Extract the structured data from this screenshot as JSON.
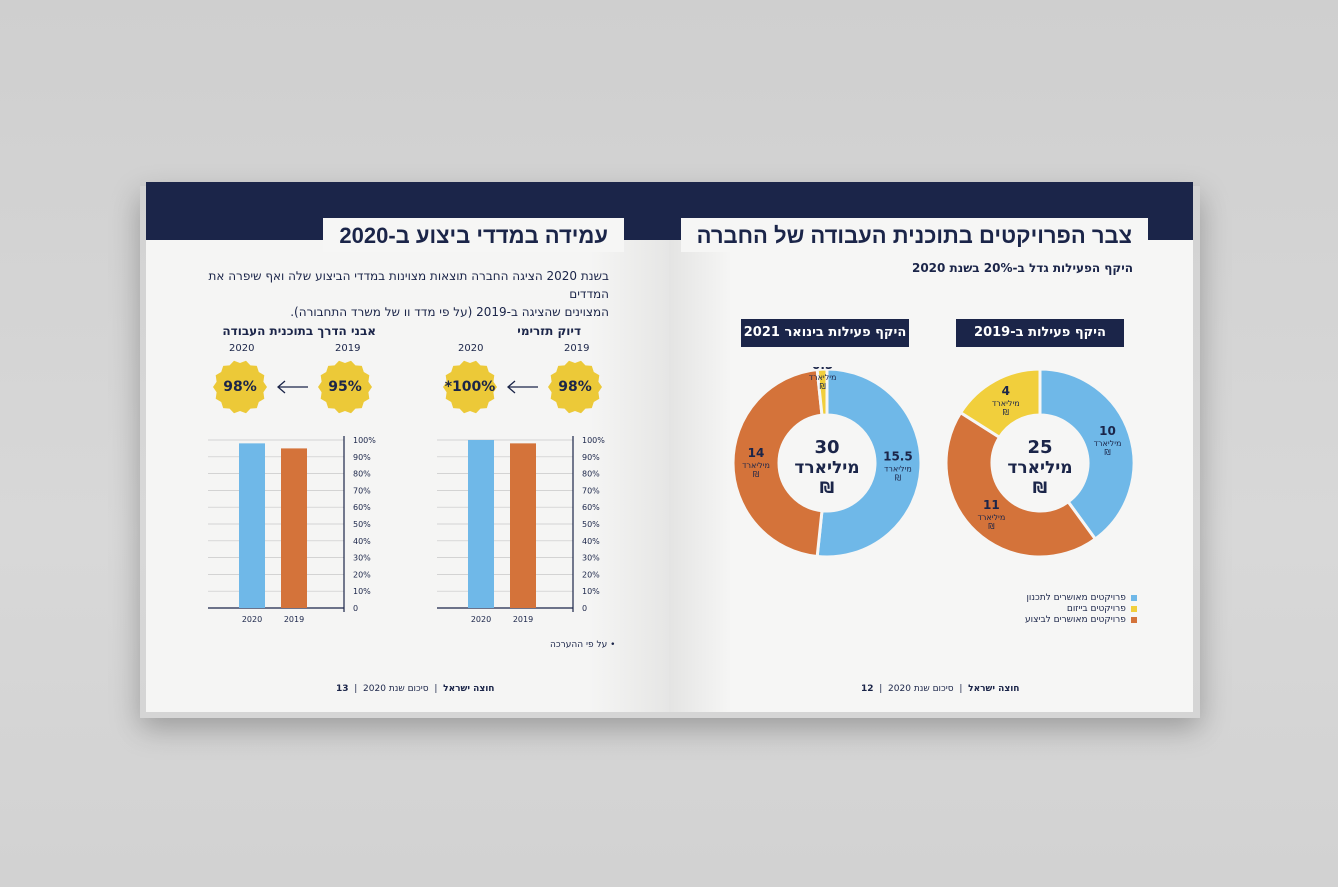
{
  "left_page": {
    "title": "עמידה במדדי ביצוע ב-2020",
    "paragraph_line1": "בשנת 2020 הציגה החברה תוצאות מצוינות במדדי הביצוע שלה ואף שיפרה את המדדים",
    "paragraph_line2": "המצוינים שהציגה ב-2019 (על פי מדד וו של משרד התחבורה).",
    "note": "• על פי ההערכה",
    "footer": {
      "company": "חוצה ישראל",
      "doc": "סיכום שנת 2020",
      "page": "13"
    }
  },
  "right_page": {
    "title": "צבר הפרויקטים בתוכנית העבודה של החברה",
    "subtitle": "היקף הפעילות גדל ב-20% בשנת 2020",
    "footer": {
      "company": "חוצה ישראל",
      "doc": "סיכום שנת 2020",
      "page": "12"
    },
    "legend": [
      {
        "label": "פרויקטים מאושרים לתכנון",
        "color": "#6fb8e8"
      },
      {
        "label": "פרויקטים בייזום",
        "color": "#f1cf3c"
      },
      {
        "label": "פרויקטים מאושרים לביצוע",
        "color": "#d4733a"
      }
    ]
  },
  "colors": {
    "navy": "#1b2549",
    "blue": "#6fb8e8",
    "yellow": "#f1cf3c",
    "orange": "#d4733a",
    "seal": "#ecc938"
  },
  "chart_data": [
    {
      "type": "bar",
      "title": "דיוק תזרימי",
      "categories": [
        "2020",
        "2019"
      ],
      "values": [
        100,
        98
      ],
      "colors": [
        "#6fb8e8",
        "#d4733a"
      ],
      "ylim": [
        0,
        100
      ],
      "yticks": [
        "100%",
        "90%",
        "80%",
        "70%",
        "60%",
        "50%",
        "40%",
        "30%",
        "20%",
        "10%",
        "0"
      ],
      "badges": {
        "year_a": "2019",
        "value_a": "98%",
        "year_b": "2020",
        "value_b": "*100%"
      }
    },
    {
      "type": "bar",
      "title": "אבני הדרך בתוכנית העבודה",
      "categories": [
        "2020",
        "2019"
      ],
      "values": [
        98,
        95
      ],
      "colors": [
        "#6fb8e8",
        "#d4733a"
      ],
      "ylim": [
        0,
        100
      ],
      "yticks": [
        "100%",
        "90%",
        "80%",
        "70%",
        "60%",
        "50%",
        "40%",
        "30%",
        "20%",
        "10%",
        "0"
      ],
      "badges": {
        "year_a": "2019",
        "value_a": "95%",
        "year_b": "2020",
        "value_b": "98%"
      }
    },
    {
      "type": "pie",
      "title": "היקף פעילות ב-2019",
      "center_value": "25",
      "center_unit": "מיליארד",
      "center_symbol": "₪",
      "unit": "מיליארד",
      "currency": "₪",
      "slices": [
        {
          "label": "פרויקטים מאושרים לתכנון",
          "value": 10,
          "color": "#6fb8e8"
        },
        {
          "label": "פרויקטים מאושרים לביצוע",
          "value": 11,
          "color": "#d4733a"
        },
        {
          "label": "פרויקטים בייזום",
          "value": 4,
          "color": "#f1cf3c"
        }
      ]
    },
    {
      "type": "pie",
      "title": "היקף פעילות בינואר 2021",
      "center_value": "30",
      "center_unit": "מיליארד",
      "center_symbol": "₪",
      "unit": "מיליארד",
      "currency": "₪",
      "slices": [
        {
          "label": "פרויקטים מאושרים לתכנון",
          "value": 15.5,
          "color": "#6fb8e8"
        },
        {
          "label": "פרויקטים מאושרים לביצוע",
          "value": 14,
          "color": "#d4733a"
        },
        {
          "label": "פרויקטים בייזום",
          "value": 0.5,
          "color": "#f1cf3c"
        }
      ]
    }
  ]
}
